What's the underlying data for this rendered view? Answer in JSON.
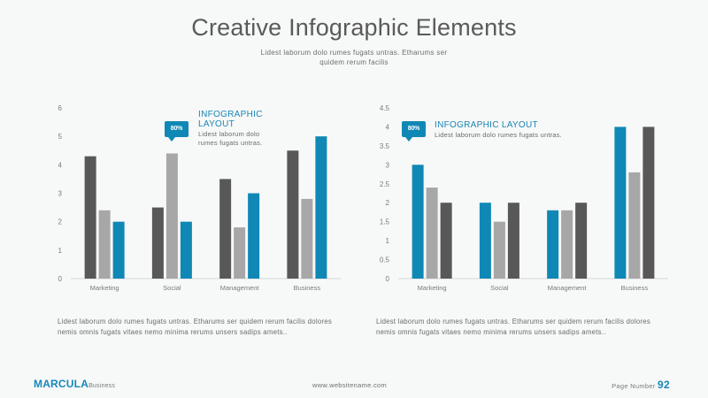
{
  "slide": {
    "title": "Creative Infographic Elements",
    "subtitle": "Lidest laborum dolo rumes fugats untras. Etharums ser quidem rerum facilis"
  },
  "colors": {
    "dark": "#585858",
    "light": "#a7a7a7",
    "blue": "#0f88b5"
  },
  "left_panel": {
    "badge": "80%",
    "callout_title": "INFOGRAPHIC LAYOUT",
    "callout_text": "Lidest laborum dolo rumes fugats untras.",
    "description": "Lidest laborum dolo rumes fugats untras. Etharums ser quidem rerum facilis dolores nemis omnis fugats vitaes nemo minima rerums unsers sadips amets.."
  },
  "right_panel": {
    "badge": "80%",
    "callout_title": "INFOGRAPHIC LAYOUT",
    "callout_text": "Lidest laborum dolo rumes fugats untras.",
    "description": "Lidest laborum dolo rumes fugats untras. Etharums ser quidem rerum facilis dolores nemis omnis fugats vitaes nemo minima rerums unsers sadips amets.."
  },
  "footer": {
    "brand": "MARCULA",
    "brand_sub": "Business",
    "website": "www.websitename.com",
    "page_label": "Page Number",
    "page_number": "92"
  },
  "chart_data": [
    {
      "type": "bar",
      "categories": [
        "Marketing",
        "Social",
        "Management",
        "Business"
      ],
      "series": [
        {
          "color": "#585858",
          "values": [
            4.3,
            2.5,
            3.5,
            4.5
          ]
        },
        {
          "color": "#a7a7a7",
          "values": [
            2.4,
            4.4,
            1.8,
            2.8
          ]
        },
        {
          "color": "#0f88b5",
          "values": [
            2.0,
            2.0,
            3.0,
            5.0
          ]
        }
      ],
      "ylim": [
        0,
        6
      ],
      "yticks": [
        "0",
        "1",
        "2",
        "3",
        "4",
        "5",
        "6"
      ],
      "grid": false
    },
    {
      "type": "bar",
      "categories": [
        "Marketing",
        "Social",
        "Management",
        "Business"
      ],
      "series": [
        {
          "color": "#0f88b5",
          "values": [
            3.0,
            2.0,
            1.8,
            4.0
          ]
        },
        {
          "color": "#a7a7a7",
          "values": [
            2.4,
            1.5,
            1.8,
            2.8
          ]
        },
        {
          "color": "#585858",
          "values": [
            2.0,
            2.0,
            2.0,
            4.0
          ]
        }
      ],
      "ylim": [
        0,
        4.5
      ],
      "yticks": [
        "0",
        "0.5",
        "1",
        "1.5",
        "2",
        "2.5",
        "3",
        "3.5",
        "4",
        "4.5"
      ],
      "grid": false
    }
  ]
}
